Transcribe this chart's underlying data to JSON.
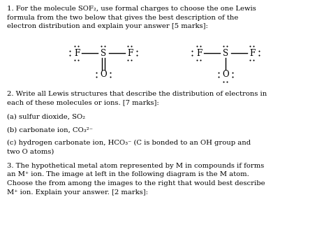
{
  "background_color": "#ffffff",
  "text_color": "#000000",
  "font_family": "DejaVu Serif",
  "para1_lines": [
    "1. For the molecule SOF₂, use formal charges to choose the one Lewis",
    "formula from the two below that gives the best description of the",
    "electron distribution and explain your answer [5 marks]:"
  ],
  "para2_lines": [
    "2. Write all Lewis structures that describe the distribution of electrons in",
    "each of these molecules or ions. [7 marks]:"
  ],
  "para3": "(a) sulfur dioxide, SO₂",
  "para4": "(b) carbonate ion, CO₃²⁻",
  "para5_lines": [
    "(c) hydrogen carbonate ion, HCO₃⁻ (C is bonded to an OH group and",
    "two O atoms)"
  ],
  "para6_lines": [
    "3. The hypothetical metal atom represented by M in compounds if forms",
    "an M⁺ ion. The image at left in the following diagram is the M atom.",
    "Choose the from among the images to the right that would best describe",
    "M⁺ ion. Explain your answer. [2 marks]:"
  ],
  "fontsize_body": 7.2,
  "fontsize_lewis": 8.5,
  "fontsize_dot": 1.8
}
